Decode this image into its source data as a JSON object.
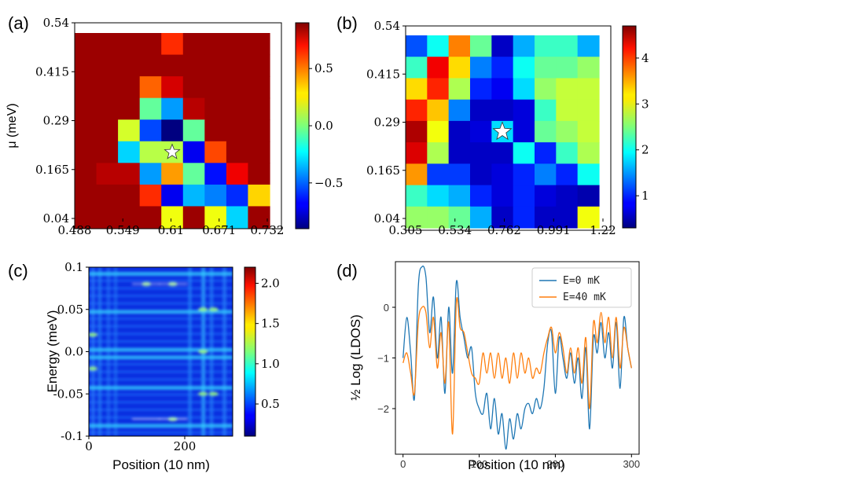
{
  "chart_data": [
    {
      "id": "a",
      "type": "heatmap",
      "panel_label": "(a)",
      "ylabel": "μ (meV)",
      "xlabel": "",
      "x_ticks": [
        "0.488",
        "0.549",
        "0.61",
        "0.671",
        "0.732"
      ],
      "y_ticks": [
        "0.54",
        "0.415",
        "0.29",
        "0.165",
        "0.04"
      ],
      "xlim": [
        0.488,
        0.732
      ],
      "ylim": [
        0.04,
        0.54
      ],
      "colorbar": {
        "min": -0.9,
        "max": 0.9,
        "ticks": [
          0.5,
          0.0,
          -0.5
        ],
        "tick_labels": [
          "0.5",
          "0.0",
          "−0.5"
        ]
      },
      "marker": {
        "symbol": "star",
        "col": 4,
        "row": 5
      },
      "grid": [
        [
          0.85,
          0.85,
          0.85,
          0.85,
          0.6,
          0.85,
          0.85,
          0.85,
          0.85
        ],
        [
          0.85,
          0.85,
          0.85,
          0.85,
          0.85,
          0.85,
          0.85,
          0.85,
          0.85
        ],
        [
          0.85,
          0.85,
          0.85,
          0.5,
          0.75,
          0.85,
          0.85,
          0.85,
          0.85
        ],
        [
          0.85,
          0.85,
          0.85,
          -0.05,
          -0.4,
          0.8,
          0.85,
          0.85,
          0.85
        ],
        [
          0.85,
          0.85,
          0.15,
          -0.55,
          -0.9,
          -0.05,
          0.85,
          0.85,
          0.85
        ],
        [
          0.85,
          0.85,
          -0.3,
          0.1,
          0.1,
          -0.7,
          0.55,
          0.85,
          0.85
        ],
        [
          0.85,
          0.8,
          0.8,
          -0.4,
          0.4,
          -0.05,
          -0.65,
          0.7,
          0.85
        ],
        [
          0.85,
          0.85,
          0.85,
          0.6,
          -0.7,
          -0.35,
          -0.45,
          -0.6,
          0.3
        ],
        [
          0.85,
          0.85,
          0.85,
          0.85,
          0.2,
          0.85,
          0.2,
          -0.3,
          0.85
        ]
      ]
    },
    {
      "id": "b",
      "type": "heatmap",
      "panel_label": "(b)",
      "x_ticks": [
        "0.305",
        "0.534",
        "0.762",
        "0.991",
        "1.22"
      ],
      "y_ticks": [
        "0.54",
        "0.415",
        "0.29",
        "0.165",
        "0.04"
      ],
      "xlim": [
        0.305,
        1.22
      ],
      "ylim": [
        0.04,
        0.54
      ],
      "colorbar": {
        "min": 0.3,
        "max": 4.7,
        "ticks": [
          4,
          3,
          2,
          1
        ],
        "tick_labels": [
          "4",
          "3",
          "2",
          "1"
        ]
      },
      "marker": {
        "symbol": "star",
        "col": 4,
        "row": 4
      },
      "grid": [
        [
          1.2,
          2.0,
          3.6,
          2.4,
          0.6,
          1.6,
          2.2,
          2.2,
          1.6
        ],
        [
          2.2,
          4.2,
          3.2,
          1.4,
          1.0,
          2.0,
          2.4,
          2.4,
          2.6
        ],
        [
          3.2,
          4.0,
          2.7,
          1.0,
          0.8,
          1.8,
          2.6,
          2.8,
          2.8
        ],
        [
          4.0,
          3.3,
          1.4,
          0.6,
          0.6,
          0.7,
          2.2,
          2.8,
          2.8
        ],
        [
          4.5,
          3.0,
          0.6,
          0.7,
          1.8,
          0.7,
          2.4,
          2.6,
          2.8
        ],
        [
          4.3,
          2.7,
          0.6,
          0.6,
          0.6,
          2.0,
          1.0,
          2.2,
          2.7
        ],
        [
          3.5,
          1.1,
          1.1,
          0.6,
          0.7,
          1.0,
          1.4,
          1.0,
          2.0
        ],
        [
          2.2,
          1.8,
          1.6,
          1.0,
          0.7,
          1.0,
          0.7,
          0.6,
          0.5
        ],
        [
          2.6,
          2.6,
          2.4,
          1.6,
          0.6,
          1.0,
          0.6,
          0.6,
          3.0
        ]
      ]
    },
    {
      "id": "c",
      "type": "heatmap",
      "panel_label": "(c)",
      "xlabel": "Position (10 nm)",
      "ylabel": "Energy (meV)",
      "x_ticks": [
        "0",
        "200"
      ],
      "x_tick_values": [
        0,
        200
      ],
      "y_ticks": [
        "0.1",
        "0.05",
        "0.0",
        "-0.05",
        "-0.1"
      ],
      "y_tick_values": [
        0.1,
        0.05,
        0.0,
        -0.05,
        -0.1
      ],
      "xlim": [
        0,
        300
      ],
      "ylim": [
        -0.1,
        0.1
      ],
      "colorbar": {
        "min": 0.1,
        "max": 2.2,
        "ticks": [
          2.0,
          1.5,
          1.0,
          0.5
        ],
        "tick_labels": [
          "2.0",
          "1.5",
          "1.0",
          "0.5"
        ]
      }
    },
    {
      "id": "d",
      "type": "line",
      "panel_label": "(d)",
      "xlabel": "Position (10 nm)",
      "ylabel": "½ Log (LDOS)",
      "x_ticks": [
        "0",
        "100",
        "200",
        "300"
      ],
      "x_tick_values": [
        0,
        100,
        200,
        300
      ],
      "y_ticks": [
        "0",
        "−1",
        "−2"
      ],
      "y_tick_values": [
        0,
        -1,
        -2
      ],
      "xlim": [
        -10,
        310
      ],
      "ylim": [
        -2.9,
        0.9
      ],
      "legend_position": "top-right",
      "series": [
        {
          "name": "E=0 mK",
          "color": "#1f77b4",
          "x": [
            0,
            5,
            10,
            15,
            20,
            25,
            30,
            35,
            40,
            45,
            50,
            55,
            60,
            65,
            70,
            75,
            80,
            85,
            90,
            95,
            100,
            105,
            110,
            115,
            120,
            125,
            130,
            135,
            140,
            145,
            150,
            155,
            160,
            165,
            170,
            175,
            180,
            185,
            190,
            195,
            200,
            205,
            210,
            215,
            220,
            225,
            230,
            235,
            240,
            245,
            250,
            255,
            260,
            265,
            270,
            275,
            280,
            285,
            290,
            295,
            300
          ],
          "y": [
            -1.0,
            -0.2,
            -0.9,
            -1.8,
            0.4,
            0.8,
            0.6,
            -0.5,
            0.2,
            -1.0,
            -0.2,
            -1.7,
            0.0,
            -1.3,
            0.5,
            -0.2,
            -0.6,
            -1.0,
            -0.8,
            -1.7,
            -2.0,
            -2.1,
            -1.7,
            -2.4,
            -1.8,
            -2.5,
            -2.1,
            -2.8,
            -2.2,
            -2.6,
            -2.1,
            -2.4,
            -2.0,
            -1.9,
            -2.1,
            -1.8,
            -2.0,
            -1.6,
            -0.7,
            -0.5,
            -1.7,
            -0.6,
            -1.0,
            -1.4,
            -0.9,
            -1.5,
            -1.0,
            -1.8,
            -0.8,
            -2.4,
            -0.6,
            -0.9,
            -0.3,
            -1.0,
            -0.5,
            -1.2,
            -0.3,
            -1.6,
            -0.2,
            -0.8,
            -1.2
          ]
        },
        {
          "name": "E=40 mK",
          "color": "#ff7f0e",
          "x": [
            0,
            5,
            10,
            15,
            20,
            25,
            30,
            35,
            40,
            45,
            50,
            55,
            60,
            65,
            70,
            75,
            80,
            85,
            90,
            95,
            100,
            105,
            110,
            115,
            120,
            125,
            130,
            135,
            140,
            145,
            150,
            155,
            160,
            165,
            170,
            175,
            180,
            185,
            190,
            195,
            200,
            205,
            210,
            215,
            220,
            225,
            230,
            235,
            240,
            245,
            250,
            255,
            260,
            265,
            270,
            275,
            280,
            285,
            290,
            295,
            300
          ],
          "y": [
            -1.1,
            -0.9,
            -1.3,
            -1.7,
            -0.3,
            0.0,
            -0.1,
            -0.8,
            -0.2,
            -1.2,
            -0.5,
            -1.5,
            -0.3,
            -2.5,
            0.1,
            -0.4,
            -0.5,
            -0.9,
            -1.3,
            -1.4,
            -1.5,
            -0.9,
            -1.3,
            -0.9,
            -1.4,
            -0.9,
            -1.4,
            -1.0,
            -1.5,
            -0.9,
            -1.4,
            -0.9,
            -1.3,
            -1.0,
            -1.4,
            -1.2,
            -1.3,
            -0.9,
            -0.6,
            -0.4,
            -0.9,
            -0.5,
            -0.8,
            -1.3,
            -0.8,
            -1.3,
            -0.8,
            -1.5,
            -0.6,
            -2.0,
            -0.3,
            -0.7,
            -0.1,
            -0.7,
            -0.2,
            -1.0,
            -0.2,
            -1.2,
            -0.4,
            -0.8,
            -1.2
          ]
        }
      ]
    }
  ]
}
